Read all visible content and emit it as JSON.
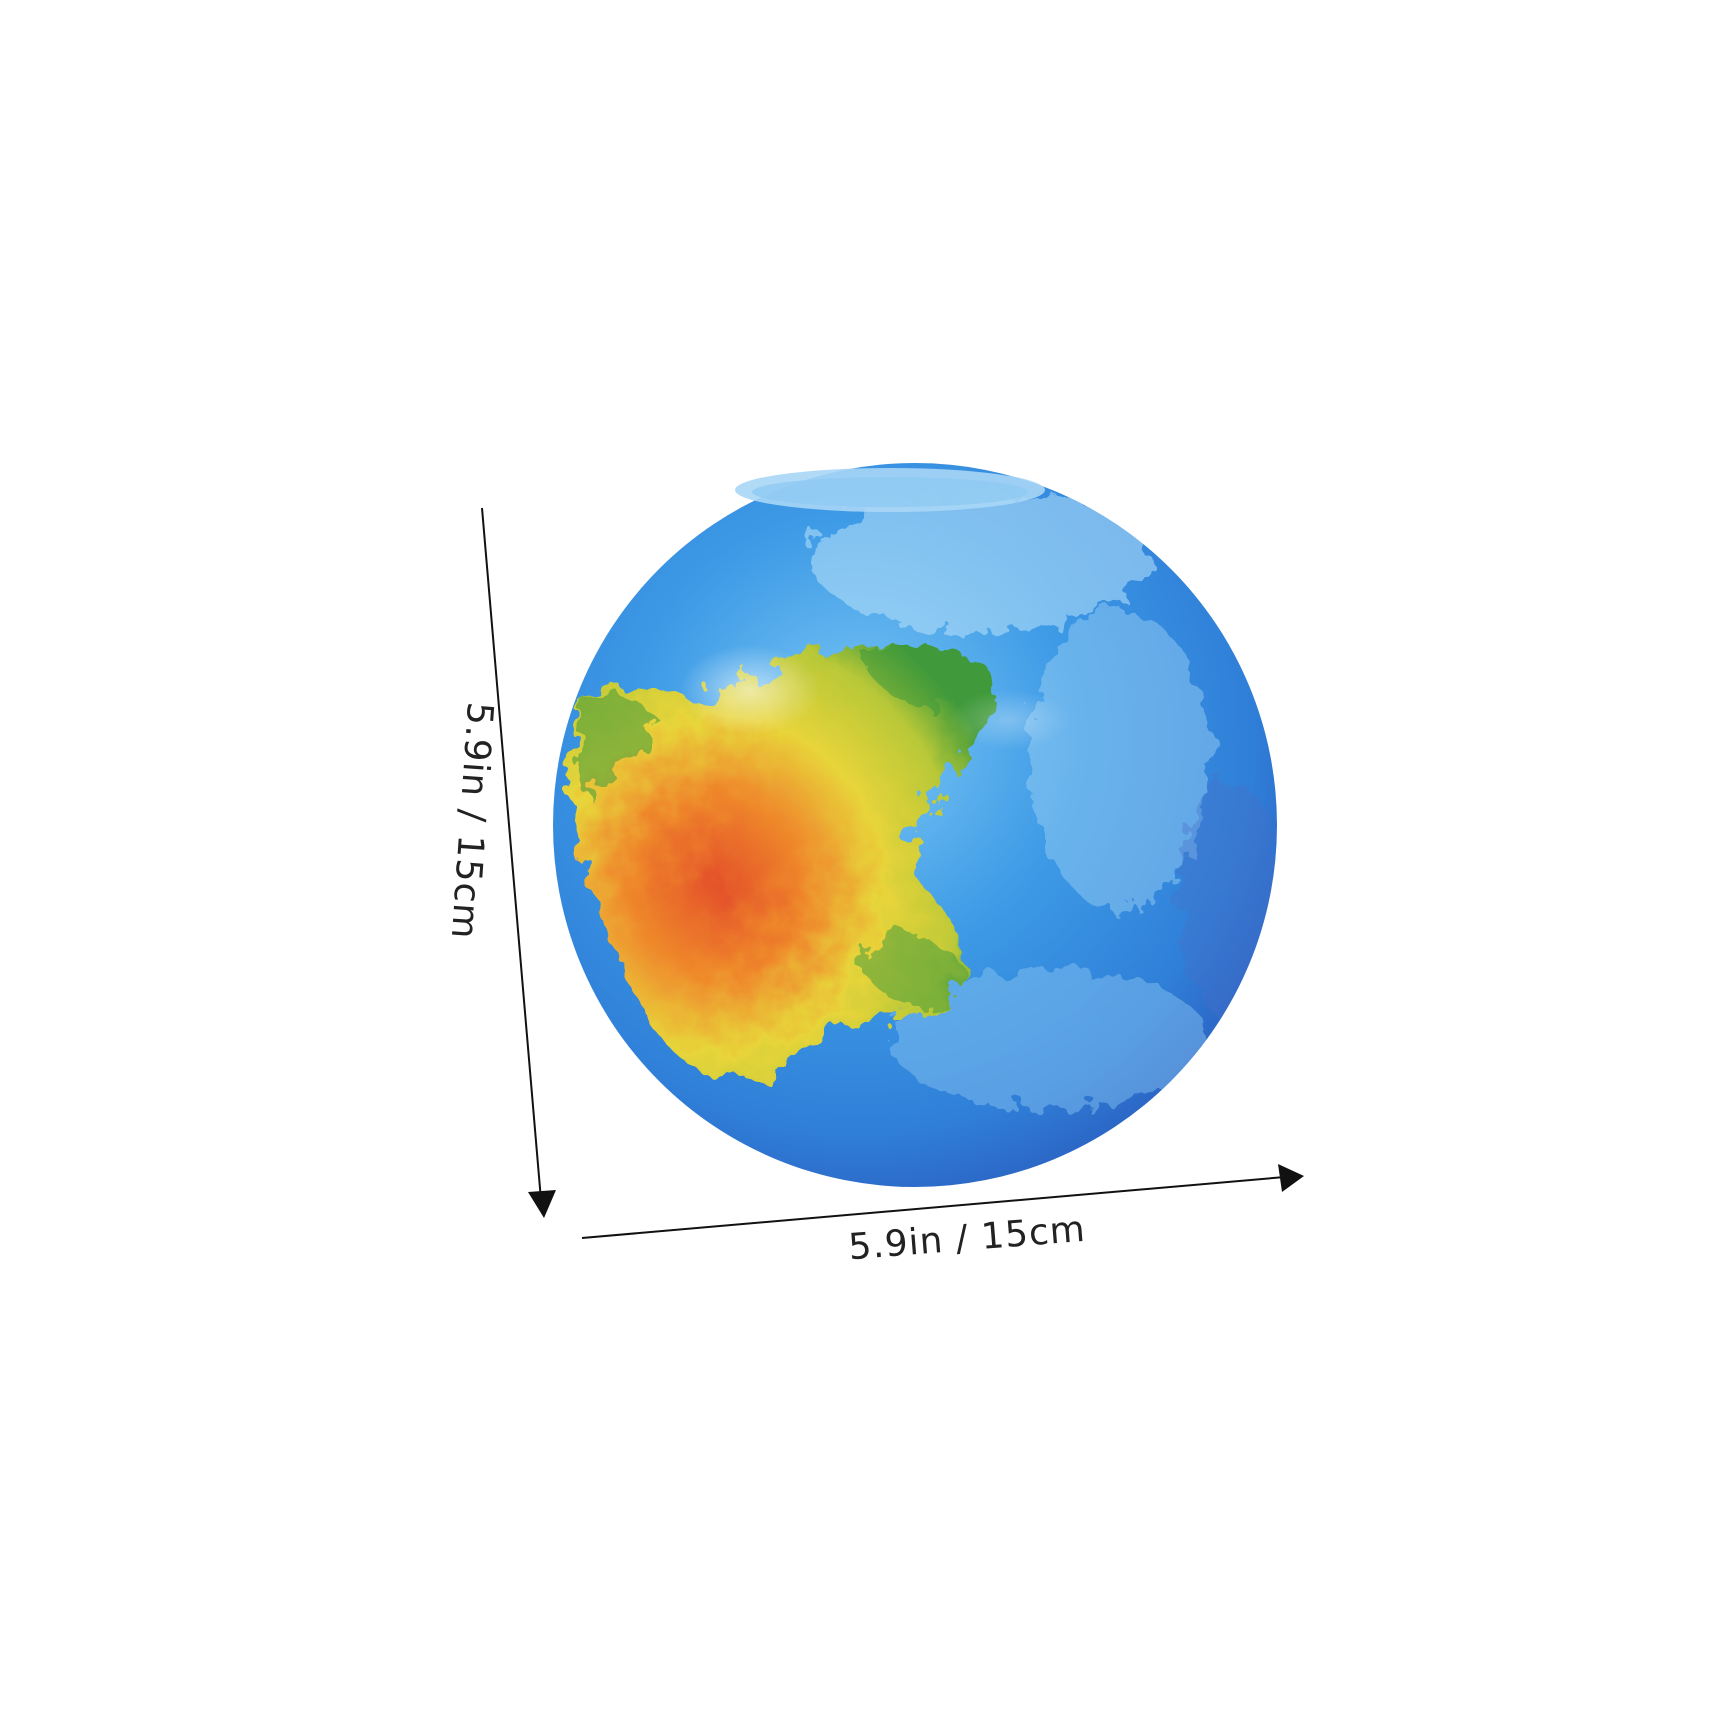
{
  "product": {
    "icon": "globe-icon",
    "colors": {
      "ocean": "#2e8fe0",
      "ocean_light": "#6ec3f2",
      "ocean_dark": "#2a62c4",
      "land_green": "#3f9a3a",
      "land_yellow": "#e8d43a",
      "land_red": "#e4512a",
      "opening": "#a9d6f6"
    }
  },
  "dimensions": {
    "height_label": "5.9in / 15cm",
    "width_label": "5.9in / 15cm",
    "line_color": "#111111"
  }
}
